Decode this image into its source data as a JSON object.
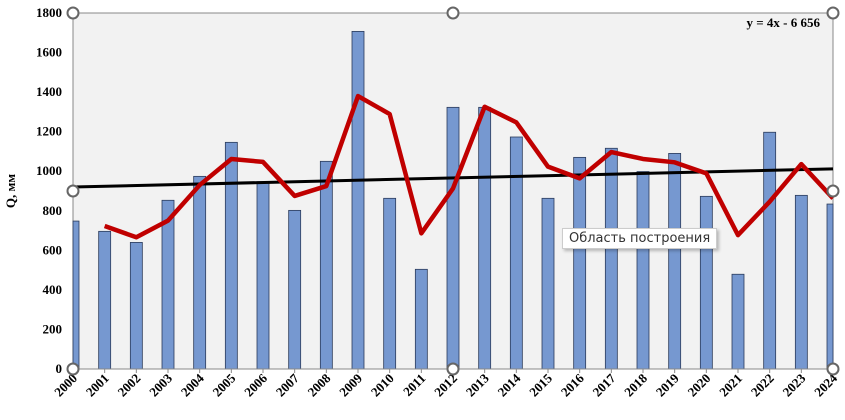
{
  "chart_data": {
    "type": "bar",
    "xlabel": "",
    "ylabel": "Q, мм",
    "ylim": [
      0,
      1800
    ],
    "yticks": [
      0,
      200,
      400,
      600,
      800,
      1000,
      1200,
      1400,
      1600,
      1800
    ],
    "grid": false,
    "categories": [
      "2000",
      "2001",
      "2002",
      "2003",
      "2004",
      "2005",
      "2006",
      "2007",
      "2008",
      "2009",
      "2010",
      "2011",
      "2012",
      "2013",
      "2014",
      "2015",
      "2016",
      "2017",
      "2018",
      "2019",
      "2020",
      "2021",
      "2022",
      "2023",
      "2024"
    ],
    "series": [
      {
        "type": "bar",
        "color": "#7698d0",
        "values": [
          748,
          696,
          640,
          853,
          974,
          1146,
          947,
          802,
          1050,
          1707,
          863,
          504,
          1323,
          1323,
          1173,
          863,
          1070,
          1116,
          998,
          1090,
          873,
          479,
          1197,
          878,
          834
        ]
      },
      {
        "type": "line",
        "color": "#c00000",
        "values": [
          null,
          723,
          666,
          750,
          930,
          1062,
          1047,
          875,
          925,
          1380,
          1289,
          686,
          913,
          1326,
          1247,
          1023,
          964,
          1097,
          1062,
          1045,
          989,
          677,
          846,
          1036,
          863
        ]
      },
      {
        "type": "trendline",
        "color": "#000000",
        "equation": "y = 4x - 6 656",
        "values_at_ends": [
          920,
          1012
        ]
      }
    ],
    "background": "#f2f2f2"
  },
  "tooltip": "Область построения"
}
